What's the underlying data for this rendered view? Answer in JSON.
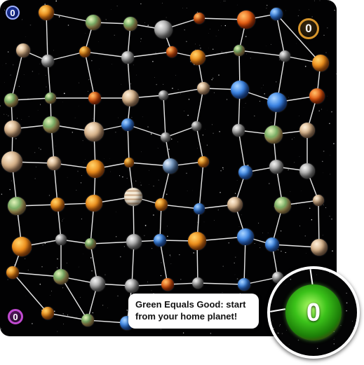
{
  "board": {
    "badges": {
      "top_left": "0",
      "top_right": "0",
      "bottom_left": "0"
    },
    "colors": {
      "top_left": "#1f3aa8",
      "top_right": "#d8962c",
      "bottom_left": "#c04ad0",
      "home": "#3bc21a"
    }
  },
  "callout": {
    "line1": "Green Equals Good: start",
    "line2": "from your home planet!"
  },
  "zoom": {
    "home_count": "0"
  }
}
